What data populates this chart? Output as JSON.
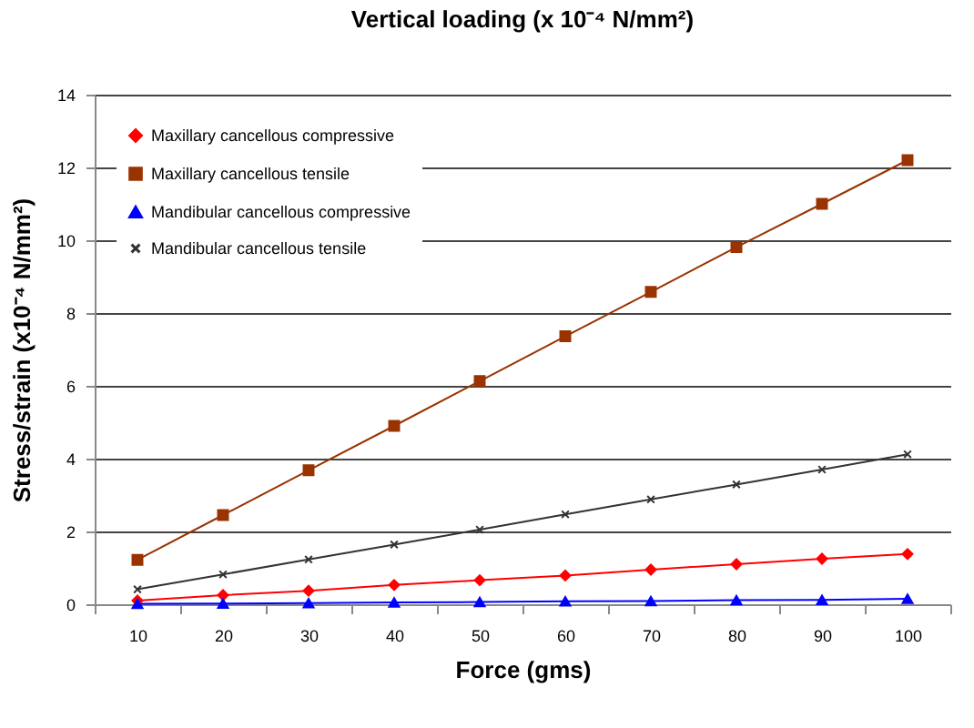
{
  "chart_data": {
    "type": "line",
    "title": "Vertical loading (x 10⁻⁴ N/mm²)",
    "xlabel": "Force (gms)",
    "ylabel": "Stress/strain (x10⁻⁴ N/mm²)",
    "categories": [
      "10",
      "20",
      "30",
      "40",
      "50",
      "60",
      "70",
      "80",
      "90",
      "100"
    ],
    "series": [
      {
        "name": "Maxillary cancellous compressive",
        "color": "#ff0000",
        "marker": "diamond",
        "values": [
          0.1,
          0.25,
          0.37,
          0.53,
          0.66,
          0.79,
          0.95,
          1.1,
          1.25,
          1.38
        ]
      },
      {
        "name": "Maxillary cancellous tensile",
        "color": "#993300",
        "marker": "square",
        "values": [
          1.22,
          2.45,
          3.68,
          4.9,
          6.13,
          7.36,
          8.58,
          9.81,
          11.0,
          12.2
        ]
      },
      {
        "name": "Mandibular cancellous compressive",
        "color": "#0000ff",
        "marker": "triangle",
        "values": [
          0.01,
          0.02,
          0.03,
          0.05,
          0.06,
          0.08,
          0.09,
          0.11,
          0.12,
          0.15
        ]
      },
      {
        "name": "Mandibular cancellous tensile",
        "color": "#333333",
        "marker": "cross",
        "values": [
          0.41,
          0.82,
          1.23,
          1.64,
          2.05,
          2.47,
          2.88,
          3.29,
          3.7,
          4.12
        ]
      }
    ],
    "ylim": [
      0,
      14
    ],
    "yticks": [
      0,
      2,
      4,
      6,
      8,
      10,
      12,
      14
    ],
    "grid": "y",
    "legend": "top left"
  }
}
